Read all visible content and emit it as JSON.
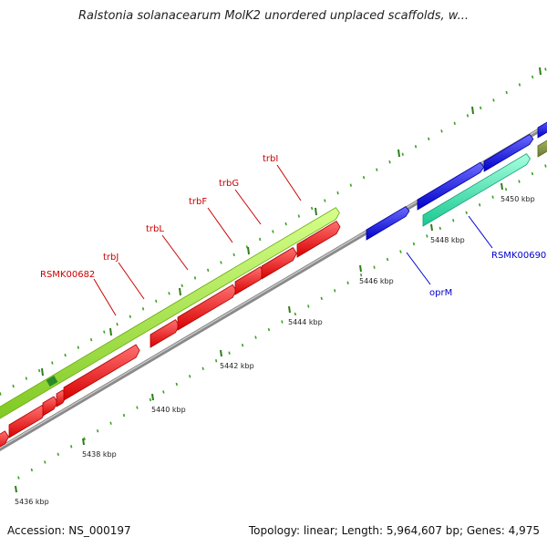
{
  "title": "Ralstonia solanacearum MolK2 unordered unplaced scaffolds, w...",
  "footer": {
    "accession": "Accession: NS_000197",
    "summary": "Topology: linear; Length: 5,964,607 bp; Genes: 4,975"
  },
  "colors": {
    "backbone": "#8a8a8a",
    "major_tick": "#2e7d1a",
    "minor_tick": "#3aa020",
    "forward_gene_light": "#a8ee3c",
    "forward_gene_cyan": "#3af0b0",
    "reverse_gene": "#ff1a1a",
    "reverse_gene_blue": "#1a1aff",
    "label_red": "#cc0000",
    "label_blue": "#0000cc"
  },
  "ticks": [
    {
      "label": "5436 kbp"
    },
    {
      "label": "5438 kbp"
    },
    {
      "label": "5440 kbp"
    },
    {
      "label": "5442 kbp"
    },
    {
      "label": "5444 kbp"
    },
    {
      "label": "5446 kbp"
    },
    {
      "label": "5448 kbp"
    },
    {
      "label": "5450 kbp"
    }
  ],
  "gene_labels": [
    {
      "text": "RSMK00682",
      "color": "red"
    },
    {
      "text": "trbJ",
      "color": "red"
    },
    {
      "text": "trbL",
      "color": "red"
    },
    {
      "text": "trbF",
      "color": "red"
    },
    {
      "text": "trbG",
      "color": "red"
    },
    {
      "text": "trbI",
      "color": "red"
    },
    {
      "text": "oprM",
      "color": "blue"
    },
    {
      "text": "RSMK00690",
      "color": "blue"
    }
  ]
}
